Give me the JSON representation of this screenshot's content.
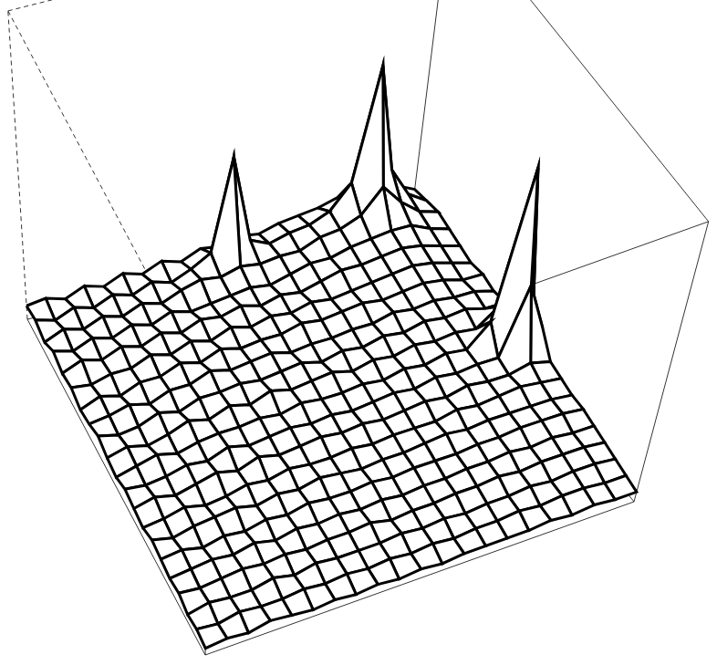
{
  "chart_data": {
    "type": "surface",
    "tick_labels": false,
    "color": "#000000",
    "xlim": [
      0,
      20
    ],
    "ylim": [
      0,
      20
    ],
    "zlim": [
      0,
      100
    ],
    "x": [
      0,
      1,
      2,
      3,
      4,
      5,
      6,
      7,
      8,
      9,
      10,
      11,
      12,
      13,
      14,
      15,
      16,
      17,
      18,
      19,
      20
    ],
    "y": [
      0,
      1,
      2,
      3,
      4,
      5,
      6,
      7,
      8,
      9,
      10,
      11,
      12,
      13,
      14,
      15,
      16,
      17,
      18,
      19,
      20
    ],
    "z": [
      [
        5,
        6,
        4,
        7,
        5,
        6,
        4,
        5,
        7,
        5,
        4,
        6,
        5,
        4,
        6,
        5,
        4,
        5,
        3,
        4,
        3
      ],
      [
        6,
        4,
        7,
        5,
        8,
        5,
        7,
        6,
        5,
        7,
        6,
        5,
        7,
        5,
        4,
        6,
        5,
        4,
        5,
        3,
        4
      ],
      [
        4,
        7,
        5,
        8,
        6,
        7,
        5,
        8,
        6,
        5,
        8,
        6,
        5,
        7,
        6,
        4,
        6,
        5,
        4,
        5,
        3
      ],
      [
        7,
        5,
        8,
        6,
        9,
        7,
        8,
        6,
        9,
        7,
        6,
        8,
        7,
        5,
        7,
        6,
        5,
        6,
        4,
        4,
        5
      ],
      [
        5,
        8,
        6,
        9,
        7,
        10,
        8,
        9,
        7,
        10,
        8,
        7,
        9,
        6,
        8,
        5,
        7,
        5,
        6,
        4,
        4
      ],
      [
        8,
        6,
        9,
        7,
        10,
        8,
        11,
        9,
        10,
        8,
        9,
        10,
        7,
        8,
        6,
        7,
        5,
        6,
        4,
        5,
        3
      ],
      [
        6,
        9,
        7,
        10,
        8,
        11,
        9,
        12,
        10,
        11,
        9,
        8,
        10,
        7,
        8,
        6,
        7,
        5,
        6,
        4,
        4
      ],
      [
        9,
        7,
        10,
        8,
        11,
        9,
        12,
        10,
        11,
        9,
        10,
        9,
        8,
        9,
        7,
        8,
        6,
        6,
        5,
        5,
        3
      ],
      [
        7,
        10,
        12,
        9,
        10,
        12,
        10,
        11,
        10,
        12,
        9,
        10,
        9,
        8,
        9,
        7,
        7,
        6,
        5,
        4,
        4
      ],
      [
        10,
        14,
        11,
        10,
        12,
        10,
        11,
        12,
        11,
        10,
        11,
        9,
        10,
        8,
        8,
        7,
        6,
        7,
        5,
        5,
        3
      ],
      [
        9,
        45,
        13,
        11,
        10,
        12,
        11,
        10,
        12,
        11,
        10,
        10,
        9,
        9,
        7,
        8,
        7,
        5,
        6,
        4,
        4
      ],
      [
        11,
        15,
        12,
        10,
        12,
        11,
        13,
        11,
        10,
        12,
        10,
        9,
        10,
        8,
        8,
        7,
        6,
        6,
        5,
        5,
        3
      ],
      [
        10,
        12,
        13,
        12,
        11,
        13,
        12,
        11,
        12,
        10,
        11,
        10,
        9,
        9,
        8,
        8,
        7,
        6,
        6,
        4,
        4
      ],
      [
        12,
        14,
        13,
        14,
        13,
        12,
        13,
        12,
        11,
        12,
        10,
        11,
        10,
        9,
        9,
        8,
        7,
        7,
        5,
        5,
        4
      ],
      [
        13,
        15,
        16,
        14,
        15,
        13,
        14,
        12,
        13,
        11,
        12,
        10,
        11,
        9,
        10,
        8,
        8,
        7,
        6,
        5,
        4
      ],
      [
        14,
        18,
        17,
        16,
        15,
        14,
        13,
        14,
        12,
        13,
        11,
        12,
        10,
        11,
        9,
        9,
        8,
        8,
        6,
        6,
        4
      ],
      [
        16,
        26,
        20,
        17,
        16,
        15,
        14,
        13,
        14,
        12,
        13,
        11,
        12,
        10,
        10,
        9,
        9,
        7,
        7,
        5,
        5
      ],
      [
        22,
        62,
        28,
        18,
        17,
        16,
        15,
        14,
        13,
        13,
        12,
        12,
        11,
        11,
        10,
        10,
        8,
        8,
        6,
        6,
        4
      ],
      [
        17,
        27,
        21,
        18,
        16,
        15,
        14,
        13,
        14,
        12,
        20,
        12,
        11,
        12,
        10,
        10,
        9,
        8,
        7,
        6,
        5
      ],
      [
        15,
        17,
        16,
        15,
        14,
        13,
        12,
        13,
        12,
        18,
        70,
        36,
        13,
        11,
        10,
        10,
        8,
        8,
        7,
        5,
        4
      ],
      [
        12,
        13,
        14,
        13,
        12,
        11,
        12,
        11,
        12,
        13,
        22,
        18,
        11,
        10,
        9,
        9,
        8,
        7,
        6,
        5,
        4
      ]
    ]
  }
}
